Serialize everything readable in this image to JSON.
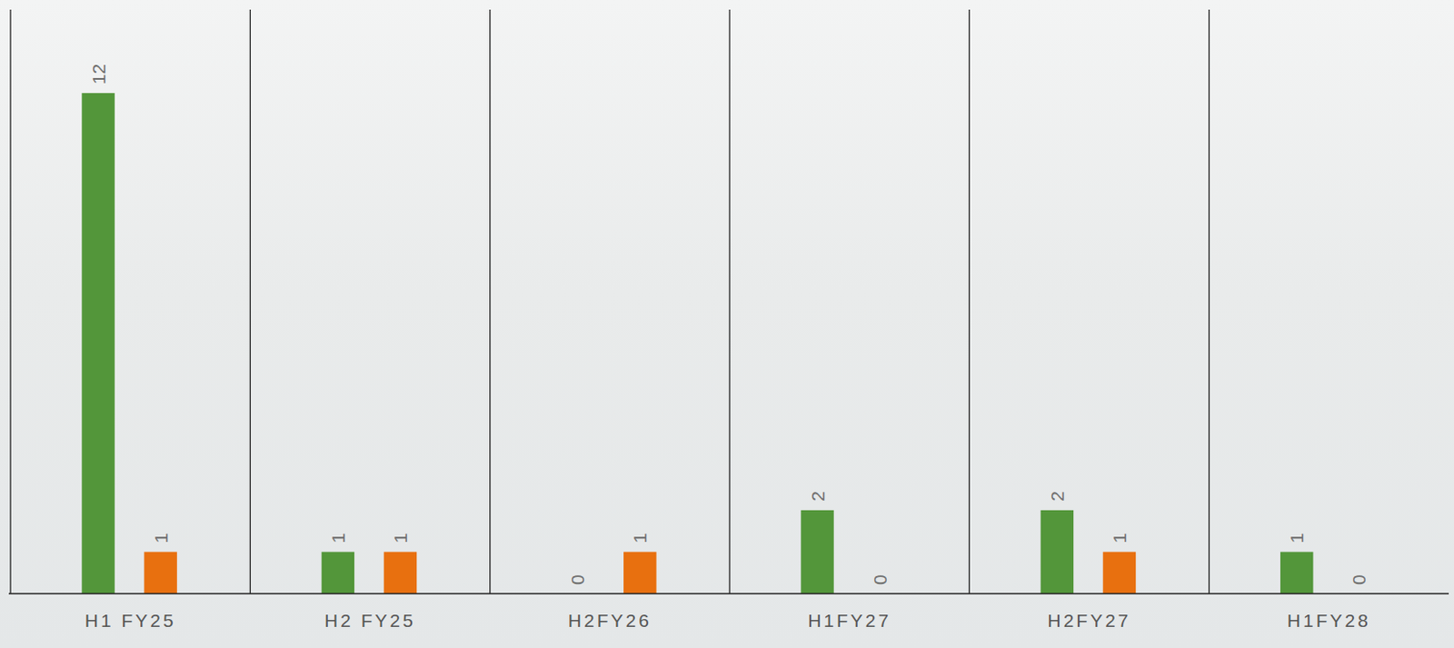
{
  "chart_data": {
    "type": "bar",
    "categories": [
      "H1 FY25",
      "H2 FY25",
      "H2FY26",
      "H1FY27",
      "H2FY27",
      "H1FY28"
    ],
    "series": [
      {
        "color": "#53963a",
        "values": [
          12,
          1,
          0,
          2,
          2,
          1
        ]
      },
      {
        "color": "#e8700f",
        "values": [
          1,
          1,
          1,
          0,
          1,
          0
        ]
      }
    ],
    "ylim": [
      0,
      14
    ],
    "data_labels": true,
    "tick_labels": "x",
    "grid": false
  }
}
